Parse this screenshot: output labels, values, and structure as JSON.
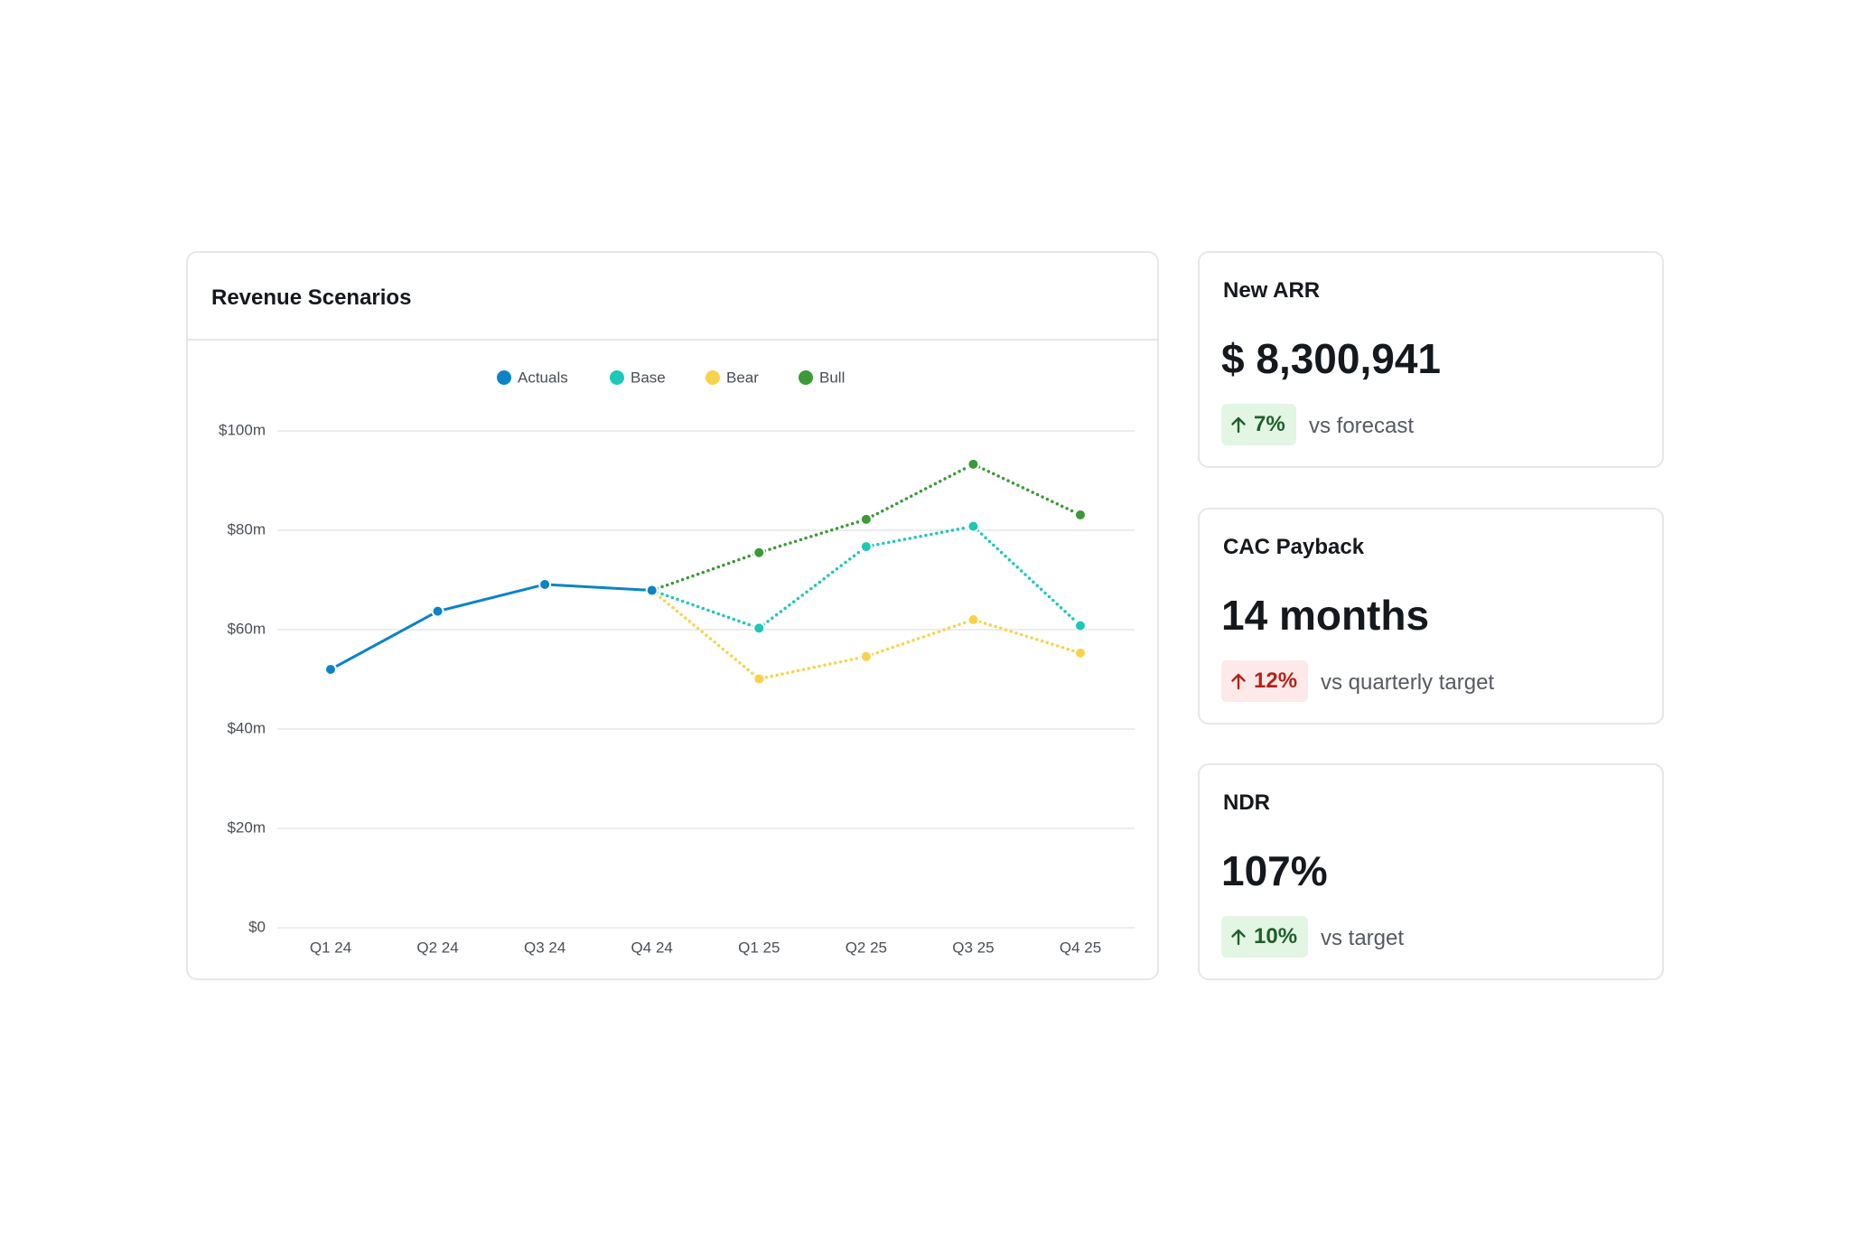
{
  "chart_data": {
    "type": "line",
    "title": "Revenue Scenarios",
    "categories": [
      "Q1 24",
      "Q2 24",
      "Q3 24",
      "Q4 24",
      "Q1 25",
      "Q2 25",
      "Q3 25",
      "Q4 25"
    ],
    "series": [
      {
        "name": "Actuals",
        "color": "#0a84c6",
        "dashed": false,
        "values": [
          52,
          63.7,
          69.1,
          67.9,
          null,
          null,
          null,
          null
        ]
      },
      {
        "name": "Base",
        "color": "#1cc8b8",
        "dashed": true,
        "values": [
          null,
          null,
          null,
          67.9,
          60.3,
          76.7,
          80.8,
          60.8
        ]
      },
      {
        "name": "Bear",
        "color": "#f9d24a",
        "dashed": true,
        "values": [
          null,
          null,
          null,
          67.9,
          50.1,
          54.6,
          62.0,
          55.3
        ]
      },
      {
        "name": "Bull",
        "color": "#3a9a35",
        "dashed": true,
        "values": [
          null,
          null,
          null,
          67.9,
          75.5,
          82.2,
          93.3,
          83.1
        ]
      }
    ],
    "ylim": [
      0,
      100
    ],
    "yticks": [
      {
        "value": 0,
        "label": "$0"
      },
      {
        "value": 20,
        "label": "$20m"
      },
      {
        "value": 40,
        "label": "$40m"
      },
      {
        "value": 60,
        "label": "$60m"
      },
      {
        "value": 80,
        "label": "$80m"
      },
      {
        "value": 100,
        "label": "$100m"
      }
    ],
    "grid": true,
    "legend": "top"
  },
  "kpis": [
    {
      "title": "New ARR",
      "value": "$ 8,300,941",
      "change": "7%",
      "comparison": "vs forecast",
      "badge_bg": "#e2f6e3",
      "badge_color": "#1f5f2c"
    },
    {
      "title": "CAC Payback",
      "value": "14 months",
      "change": "12%",
      "comparison": "vs quarterly target",
      "badge_bg": "#fde9e9",
      "badge_color": "#b42318"
    },
    {
      "title": "NDR",
      "value": "107%",
      "change": "10%",
      "comparison": "vs target",
      "badge_bg": "#e2f6e3",
      "badge_color": "#1f5f2c"
    }
  ]
}
